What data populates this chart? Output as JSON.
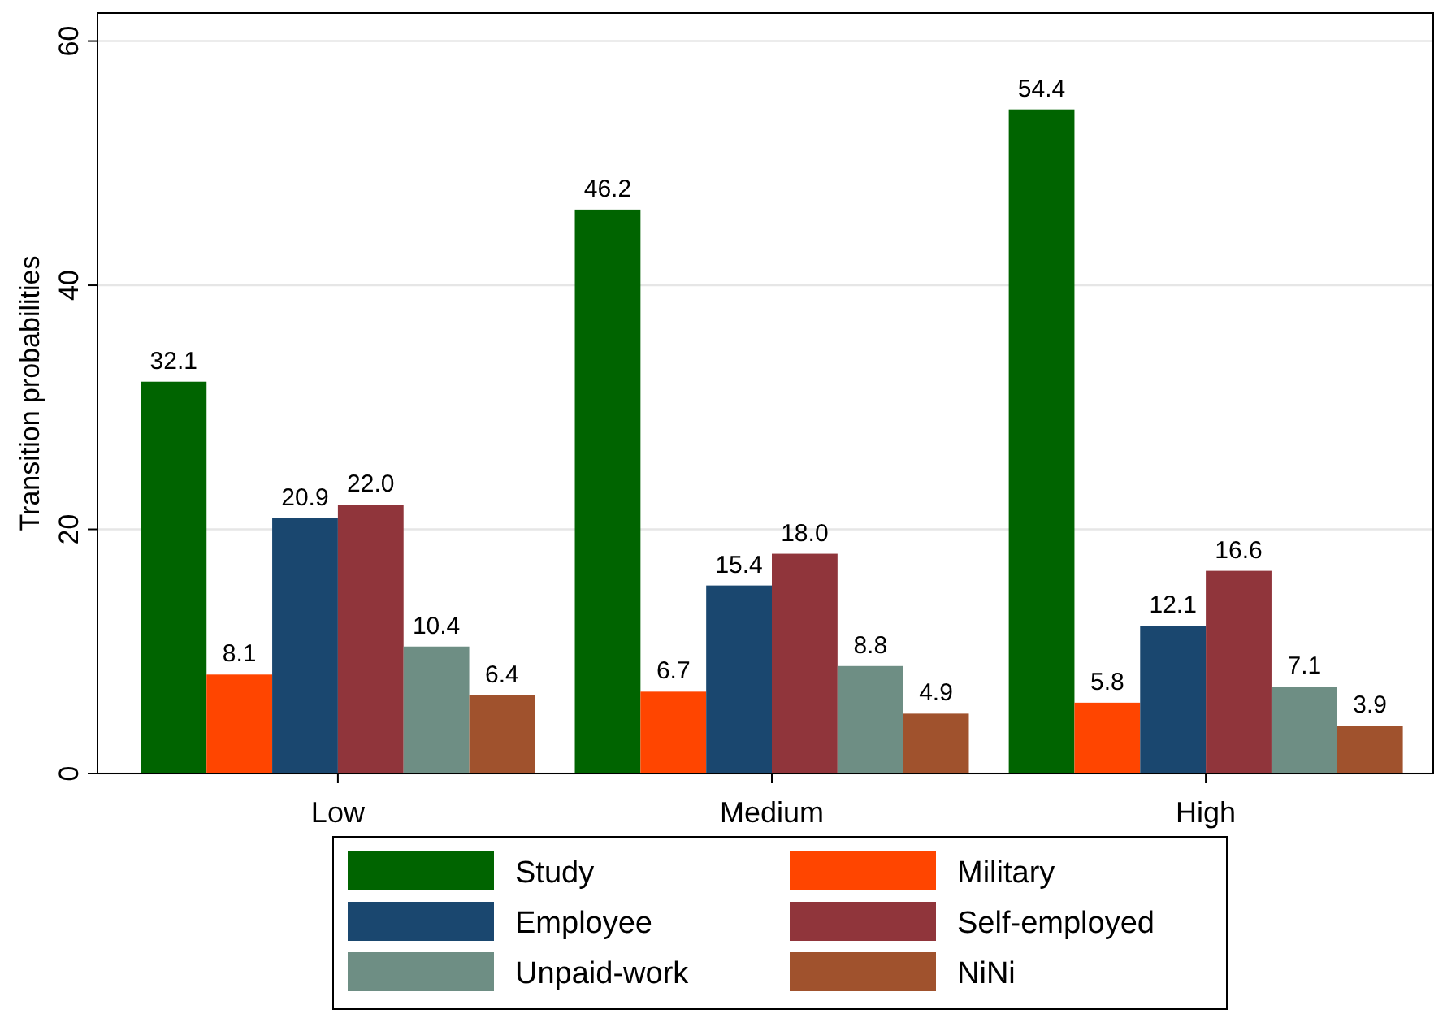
{
  "chart_data": {
    "type": "bar",
    "ylabel": "Transition probabilities",
    "categories": [
      "Low",
      "Medium",
      "High"
    ],
    "series": [
      {
        "name": "Study",
        "color": "#006400",
        "values": [
          32.1,
          46.2,
          54.4
        ],
        "value_labels": [
          "32.1",
          "46.2",
          "54.4"
        ]
      },
      {
        "name": "Military",
        "color": "#ff4500",
        "values": [
          8.1,
          6.7,
          5.8
        ],
        "value_labels": [
          "8.1",
          "6.7",
          "5.8"
        ]
      },
      {
        "name": "Employee",
        "color": "#1a476f",
        "values": [
          20.9,
          15.4,
          12.1
        ],
        "value_labels": [
          "20.9",
          "15.4",
          "12.1"
        ]
      },
      {
        "name": "Self-employed",
        "color": "#90353b",
        "values": [
          22.0,
          18.0,
          16.6
        ],
        "value_labels": [
          "22.0",
          "18.0",
          "16.6"
        ]
      },
      {
        "name": "Unpaid-work",
        "color": "#6e8e84",
        "values": [
          10.4,
          8.8,
          7.1
        ],
        "value_labels": [
          "10.4",
          "8.8",
          "7.1"
        ]
      },
      {
        "name": "NiNi",
        "color": "#a0522d",
        "values": [
          6.4,
          4.9,
          3.9
        ],
        "value_labels": [
          "6.4",
          "4.9",
          "3.9"
        ]
      }
    ],
    "ylim": [
      0,
      62.3
    ],
    "yticks": [
      0,
      20,
      40,
      60
    ],
    "grid": "y",
    "legend": "bottom"
  }
}
